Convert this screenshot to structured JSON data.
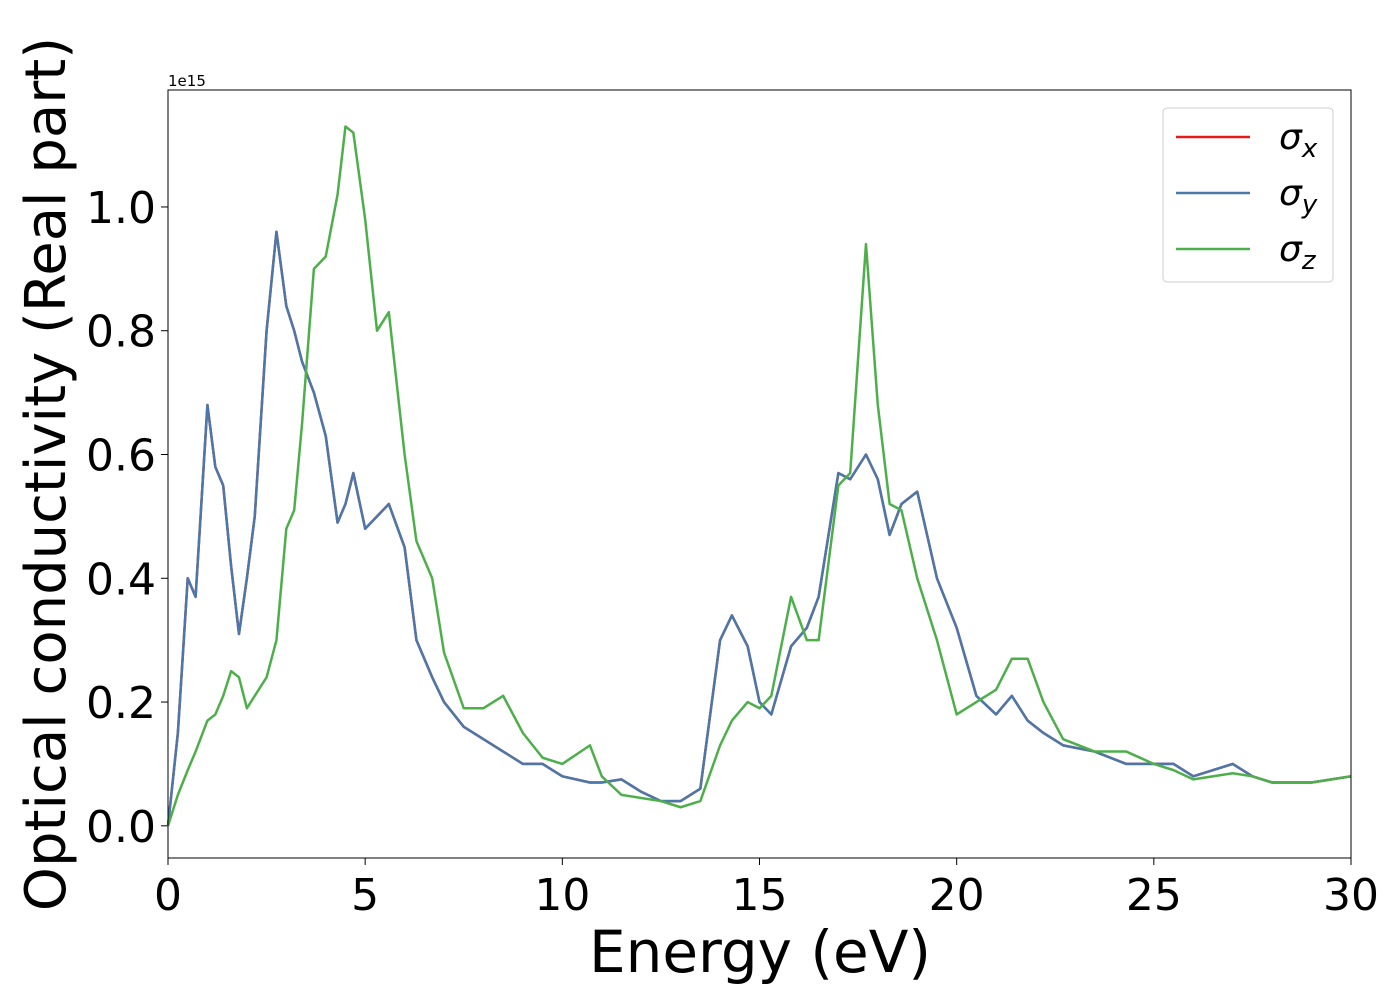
{
  "chart_data": {
    "type": "line",
    "xlabel": "Energy (eV)",
    "ylabel": "Optical conductivity (Real part)",
    "y_offset_text": "1e15",
    "xlim": [
      0,
      30
    ],
    "ylim": [
      -0.052,
      1.189
    ],
    "xticks": [
      0,
      5,
      10,
      15,
      20,
      25,
      30
    ],
    "yticks": [
      {
        "value": 0,
        "label": "0.0"
      },
      0.2,
      0.4,
      0.6,
      0.8,
      {
        "value": 1,
        "label": "1.0"
      }
    ],
    "legend": "upper right",
    "x": [
      0,
      0.25,
      0.5,
      0.7,
      1.0,
      1.2,
      1.4,
      1.6,
      1.8,
      2.0,
      2.2,
      2.5,
      2.75,
      3.0,
      3.2,
      3.4,
      3.7,
      4.0,
      4.3,
      4.5,
      4.7,
      5.0,
      5.3,
      5.6,
      6.0,
      6.3,
      6.7,
      7.0,
      7.5,
      8.0,
      8.5,
      9.0,
      9.5,
      10.0,
      10.7,
      11.0,
      11.5,
      12.0,
      12.5,
      13.0,
      13.5,
      14.0,
      14.3,
      14.7,
      15.0,
      15.3,
      15.8,
      16.2,
      16.5,
      17.0,
      17.3,
      17.7,
      18.0,
      18.3,
      18.6,
      19.0,
      19.5,
      20.0,
      20.5,
      21.0,
      21.4,
      21.8,
      22.2,
      22.7,
      23.5,
      24.3,
      25.0,
      25.5,
      26.0,
      27.0,
      27.5,
      28.0,
      29.0,
      30.0
    ],
    "series": [
      {
        "name": "σx",
        "color": "#e41a1c",
        "values": [
          0,
          0.15,
          0.4,
          0.37,
          0.68,
          0.58,
          0.55,
          0.42,
          0.31,
          0.4,
          0.5,
          0.8,
          0.96,
          0.84,
          0.8,
          0.75,
          0.7,
          0.63,
          0.49,
          0.52,
          0.57,
          0.48,
          0.5,
          0.52,
          0.45,
          0.3,
          0.24,
          0.2,
          0.16,
          0.14,
          0.12,
          0.1,
          0.1,
          0.08,
          0.07,
          0.07,
          0.075,
          0.055,
          0.04,
          0.04,
          0.06,
          0.3,
          0.34,
          0.29,
          0.2,
          0.18,
          0.29,
          0.32,
          0.37,
          0.57,
          0.56,
          0.6,
          0.56,
          0.47,
          0.52,
          0.54,
          0.4,
          0.32,
          0.21,
          0.18,
          0.21,
          0.17,
          0.15,
          0.13,
          0.12,
          0.1,
          0.1,
          0.1,
          0.08,
          0.1,
          0.08,
          0.07,
          0.07,
          0.08
        ]
      },
      {
        "name": "σy",
        "color": "#4a78aa",
        "values": [
          0,
          0.15,
          0.4,
          0.37,
          0.68,
          0.58,
          0.55,
          0.42,
          0.31,
          0.4,
          0.5,
          0.8,
          0.96,
          0.84,
          0.8,
          0.75,
          0.7,
          0.63,
          0.49,
          0.52,
          0.57,
          0.48,
          0.5,
          0.52,
          0.45,
          0.3,
          0.24,
          0.2,
          0.16,
          0.14,
          0.12,
          0.1,
          0.1,
          0.08,
          0.07,
          0.07,
          0.075,
          0.055,
          0.04,
          0.04,
          0.06,
          0.3,
          0.34,
          0.29,
          0.2,
          0.18,
          0.29,
          0.32,
          0.37,
          0.57,
          0.56,
          0.6,
          0.56,
          0.47,
          0.52,
          0.54,
          0.4,
          0.32,
          0.21,
          0.18,
          0.21,
          0.17,
          0.15,
          0.13,
          0.12,
          0.1,
          0.1,
          0.1,
          0.08,
          0.1,
          0.08,
          0.07,
          0.07,
          0.08
        ]
      },
      {
        "name": "σz",
        "color": "#4daf4a",
        "values": [
          0,
          0.05,
          0.09,
          0.12,
          0.17,
          0.18,
          0.21,
          0.25,
          0.24,
          0.19,
          0.21,
          0.24,
          0.3,
          0.48,
          0.51,
          0.65,
          0.9,
          0.92,
          1.02,
          1.13,
          1.12,
          0.98,
          0.8,
          0.83,
          0.6,
          0.46,
          0.4,
          0.28,
          0.19,
          0.19,
          0.21,
          0.15,
          0.11,
          0.1,
          0.13,
          0.08,
          0.05,
          0.045,
          0.04,
          0.03,
          0.04,
          0.13,
          0.17,
          0.2,
          0.19,
          0.21,
          0.37,
          0.3,
          0.3,
          0.55,
          0.57,
          0.94,
          0.68,
          0.52,
          0.51,
          0.4,
          0.3,
          0.18,
          0.2,
          0.22,
          0.27,
          0.27,
          0.2,
          0.14,
          0.12,
          0.12,
          0.1,
          0.09,
          0.075,
          0.085,
          0.08,
          0.07,
          0.07,
          0.08
        ]
      }
    ]
  }
}
